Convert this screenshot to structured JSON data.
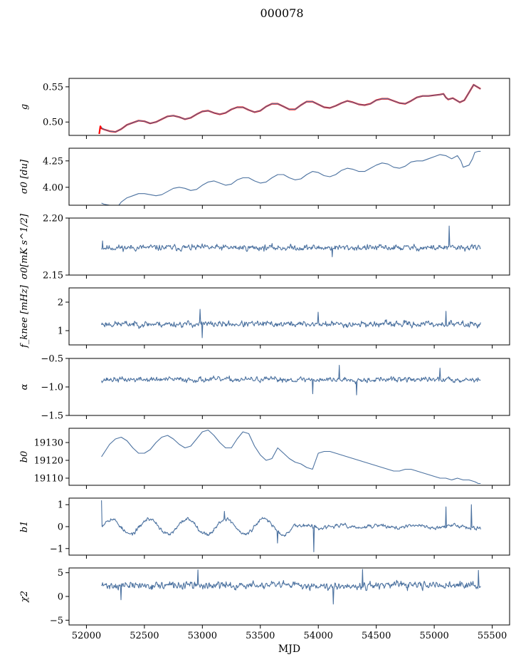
{
  "figure": {
    "title": "000078"
  },
  "chart_data": [
    {
      "type": "line",
      "panel_id": "g",
      "ylabel": "g",
      "xlabel": "",
      "xlim": [
        51850,
        55650
      ],
      "ylim": [
        0.481,
        0.562
      ],
      "yticks": [
        0.5,
        0.55
      ],
      "ytick_labels": [
        "0.50",
        "0.55"
      ],
      "series": [
        {
          "color": "#ff0000",
          "stroke_width": 2.2,
          "x": [
            52110,
            52120,
            52130,
            52160,
            52200,
            52250,
            52300,
            52350,
            52400,
            52450,
            52500,
            52550,
            52600,
            52650,
            52700,
            52750,
            52800,
            52850,
            52900,
            52950,
            53000,
            53050,
            53100,
            53150,
            53200,
            53250,
            53300,
            53350,
            53400,
            53450,
            53500,
            53550,
            53600,
            53650,
            53700,
            53750,
            53800,
            53850,
            53900,
            53950,
            54000,
            54050,
            54100,
            54150,
            54200,
            54250,
            54300,
            54350,
            54400,
            54450,
            54500,
            54550,
            54600,
            54650,
            54700,
            54750,
            54800,
            54850,
            54900,
            54950,
            55000,
            55050,
            55080,
            55100,
            55120,
            55160,
            55200,
            55220,
            55260,
            55300,
            55340,
            55360,
            55380,
            55400
          ],
          "y": [
            0.483,
            0.494,
            0.491,
            0.489,
            0.487,
            0.486,
            0.49,
            0.496,
            0.499,
            0.502,
            0.501,
            0.498,
            0.5,
            0.504,
            0.508,
            0.509,
            0.507,
            0.504,
            0.506,
            0.511,
            0.515,
            0.516,
            0.513,
            0.511,
            0.513,
            0.518,
            0.521,
            0.521,
            0.517,
            0.514,
            0.516,
            0.522,
            0.526,
            0.526,
            0.522,
            0.518,
            0.518,
            0.524,
            0.529,
            0.529,
            0.525,
            0.521,
            0.52,
            0.523,
            0.527,
            0.53,
            0.528,
            0.525,
            0.524,
            0.526,
            0.531,
            0.533,
            0.533,
            0.53,
            0.527,
            0.526,
            0.53,
            0.535,
            0.537,
            0.537,
            0.538,
            0.539,
            0.54,
            0.535,
            0.532,
            0.534,
            0.53,
            0.528,
            0.531,
            0.542,
            0.553,
            0.551,
            0.549,
            0.547
          ]
        },
        {
          "color": "#4c72a0",
          "stroke_width": 1.1,
          "x": [
            52130,
            52160,
            52200,
            52250,
            52300,
            52350,
            52400,
            52450,
            52500,
            52550,
            52600,
            52650,
            52700,
            52750,
            52800,
            52850,
            52900,
            52950,
            53000,
            53050,
            53100,
            53150,
            53200,
            53250,
            53300,
            53350,
            53400,
            53450,
            53500,
            53550,
            53600,
            53650,
            53700,
            53750,
            53800,
            53850,
            53900,
            53950,
            54000,
            54050,
            54100,
            54150,
            54200,
            54250,
            54300,
            54350,
            54400,
            54450,
            54500,
            54550,
            54600,
            54650,
            54700,
            54750,
            54800,
            54850,
            54900,
            54950,
            55000,
            55050,
            55080,
            55100,
            55120,
            55160,
            55200,
            55220,
            55260,
            55300,
            55340,
            55360,
            55380,
            55400
          ],
          "y": [
            0.492,
            0.489,
            0.487,
            0.486,
            0.49,
            0.496,
            0.499,
            0.502,
            0.501,
            0.498,
            0.5,
            0.504,
            0.508,
            0.509,
            0.507,
            0.504,
            0.506,
            0.511,
            0.515,
            0.516,
            0.513,
            0.511,
            0.513,
            0.518,
            0.521,
            0.521,
            0.517,
            0.514,
            0.516,
            0.522,
            0.526,
            0.526,
            0.522,
            0.518,
            0.518,
            0.524,
            0.529,
            0.529,
            0.525,
            0.521,
            0.52,
            0.523,
            0.527,
            0.53,
            0.528,
            0.525,
            0.524,
            0.526,
            0.531,
            0.533,
            0.533,
            0.53,
            0.527,
            0.526,
            0.53,
            0.535,
            0.537,
            0.537,
            0.538,
            0.539,
            0.54,
            0.535,
            0.532,
            0.534,
            0.53,
            0.528,
            0.531,
            0.542,
            0.553,
            0.551,
            0.549,
            0.547
          ]
        }
      ]
    },
    {
      "type": "line",
      "panel_id": "sigma0-du",
      "ylabel": "σ0 [du]",
      "xlabel": "",
      "xlim": [
        51850,
        55650
      ],
      "ylim": [
        3.83,
        4.37
      ],
      "yticks": [
        4.0,
        4.25
      ],
      "ytick_labels": [
        "4.00",
        "4.25"
      ],
      "series": [
        {
          "color": "#4c72a0",
          "stroke_width": 1.1,
          "x": [
            52130,
            52150,
            52200,
            52250,
            52280,
            52300,
            52350,
            52400,
            52450,
            52500,
            52550,
            52600,
            52650,
            52700,
            52750,
            52800,
            52850,
            52900,
            52950,
            53000,
            53050,
            53100,
            53150,
            53200,
            53250,
            53300,
            53350,
            53400,
            53450,
            53500,
            53550,
            53600,
            53650,
            53700,
            53750,
            53800,
            53850,
            53900,
            53950,
            54000,
            54050,
            54100,
            54150,
            54200,
            54250,
            54300,
            54350,
            54400,
            54450,
            54500,
            54550,
            54600,
            54650,
            54700,
            54750,
            54800,
            54850,
            54900,
            54950,
            55000,
            55050,
            55100,
            55150,
            55200,
            55230,
            55250,
            55300,
            55330,
            55350,
            55380,
            55400
          ],
          "y": [
            3.85,
            3.84,
            3.83,
            3.82,
            3.83,
            3.86,
            3.9,
            3.92,
            3.94,
            3.94,
            3.93,
            3.92,
            3.93,
            3.96,
            3.99,
            4.0,
            3.99,
            3.97,
            3.98,
            4.02,
            4.05,
            4.06,
            4.04,
            4.02,
            4.03,
            4.07,
            4.09,
            4.09,
            4.06,
            4.04,
            4.05,
            4.09,
            4.12,
            4.12,
            4.09,
            4.07,
            4.08,
            4.12,
            4.15,
            4.14,
            4.11,
            4.1,
            4.12,
            4.16,
            4.18,
            4.17,
            4.15,
            4.15,
            4.18,
            4.21,
            4.23,
            4.22,
            4.19,
            4.18,
            4.2,
            4.24,
            4.25,
            4.25,
            4.27,
            4.29,
            4.31,
            4.3,
            4.27,
            4.3,
            4.25,
            4.19,
            4.21,
            4.27,
            4.33,
            4.34,
            4.34
          ]
        }
      ]
    },
    {
      "type": "line",
      "panel_id": "sigma0-mk",
      "ylabel": "σ0[mK s^1/2]",
      "xlabel": "",
      "xlim": [
        51850,
        55650
      ],
      "ylim": [
        2.15,
        2.2
      ],
      "yticks": [
        2.15,
        2.2
      ],
      "ytick_labels": [
        "2.15",
        "2.20"
      ],
      "series": [
        {
          "color": "#4c72a0",
          "stroke_width": 1.1,
          "noise": true,
          "mean": 2.174,
          "amp": 0.004,
          "seed": 11,
          "x_start": 52130,
          "x_end": 55400,
          "spikes": [
            [
              55130,
              2.193
            ],
            [
              52140,
              2.18
            ],
            [
              54120,
              2.166
            ]
          ]
        }
      ]
    },
    {
      "type": "line",
      "panel_id": "fknee",
      "ylabel": "f_knee [mHz]",
      "xlabel": "",
      "xlim": [
        51850,
        55650
      ],
      "ylim": [
        0.5,
        2.5
      ],
      "yticks": [
        1,
        2
      ],
      "ytick_labels": [
        "1",
        "2"
      ],
      "series": [
        {
          "color": "#4c72a0",
          "stroke_width": 1.1,
          "noise": true,
          "mean": 1.23,
          "amp": 0.16,
          "seed": 23,
          "x_start": 52130,
          "x_end": 55400,
          "spikes": [
            [
              52980,
              1.75
            ],
            [
              53000,
              0.75
            ],
            [
              54000,
              1.65
            ],
            [
              55100,
              1.68
            ]
          ]
        }
      ]
    },
    {
      "type": "line",
      "panel_id": "alpha",
      "ylabel": "α",
      "xlabel": "",
      "xlim": [
        51850,
        55650
      ],
      "ylim": [
        -1.5,
        -0.5
      ],
      "yticks": [
        -1.5,
        -1.0,
        -0.5
      ],
      "ytick_labels": [
        "−1.5",
        "−1.0",
        "−0.5"
      ],
      "series": [
        {
          "color": "#4c72a0",
          "stroke_width": 1.1,
          "noise": true,
          "mean": -0.87,
          "amp": 0.07,
          "seed": 37,
          "x_start": 52130,
          "x_end": 55400,
          "spikes": [
            [
              54180,
              -0.62
            ],
            [
              54330,
              -1.14
            ],
            [
              53950,
              -1.12
            ],
            [
              55050,
              -0.67
            ]
          ]
        }
      ]
    },
    {
      "type": "line",
      "panel_id": "b0",
      "ylabel": "b0",
      "xlabel": "",
      "xlim": [
        51850,
        55650
      ],
      "ylim": [
        19106,
        19138
      ],
      "yticks": [
        19110,
        19120,
        19130
      ],
      "ytick_labels": [
        "19110",
        "19120",
        "19130"
      ],
      "series": [
        {
          "color": "#4c72a0",
          "stroke_width": 1.1,
          "x": [
            52130,
            52160,
            52200,
            52250,
            52300,
            52350,
            52400,
            52450,
            52500,
            52550,
            52600,
            52650,
            52700,
            52750,
            52800,
            52850,
            52900,
            52950,
            53000,
            53050,
            53100,
            53150,
            53200,
            53250,
            53300,
            53350,
            53400,
            53450,
            53500,
            53550,
            53600,
            53650,
            53700,
            53750,
            53800,
            53850,
            53900,
            53950,
            54000,
            54050,
            54100,
            54150,
            54200,
            54250,
            54300,
            54350,
            54400,
            54450,
            54500,
            54550,
            54600,
            54650,
            54700,
            54750,
            54800,
            54850,
            54900,
            54950,
            55000,
            55050,
            55100,
            55150,
            55200,
            55250,
            55300,
            55350,
            55380,
            55400
          ],
          "y": [
            19122,
            19125,
            19129,
            19132,
            19133,
            19131,
            19127,
            19124,
            19124,
            19126,
            19130,
            19133,
            19134,
            19132,
            19129,
            19127,
            19128,
            19132,
            19136,
            19137,
            19134,
            19130,
            19127,
            19127,
            19132,
            19136,
            19135,
            19128,
            19123,
            19120,
            19121,
            19127,
            19124,
            19121,
            19119,
            19118,
            19116,
            19115,
            19124,
            19125,
            19125,
            19124,
            19123,
            19122,
            19121,
            19120,
            19119,
            19118,
            19117,
            19116,
            19115,
            19114,
            19114,
            19115,
            19115,
            19114,
            19113,
            19112,
            19111,
            19110,
            19110,
            19109,
            19110,
            19109,
            19109,
            19108,
            19107,
            19107
          ]
        }
      ]
    },
    {
      "type": "line",
      "panel_id": "b1",
      "ylabel": "b1",
      "xlabel": "",
      "xlim": [
        51850,
        55650
      ],
      "ylim": [
        -1.3,
        1.3
      ],
      "yticks": [
        -1,
        0,
        1
      ],
      "ytick_labels": [
        "−1",
        "0",
        "1"
      ],
      "series": [
        {
          "color": "#4c72a0",
          "stroke_width": 1.1,
          "noise": true,
          "mean": 0.0,
          "amp": 0.13,
          "seed": 53,
          "x_start": 52130,
          "x_end": 55400,
          "wave": {
            "amp": 0.35,
            "period": 330,
            "fade_at": 53800
          },
          "spikes": [
            [
              52130,
              1.2
            ],
            [
              53960,
              -1.15
            ],
            [
              53650,
              -0.75
            ],
            [
              55320,
              1.0
            ],
            [
              55100,
              0.9
            ],
            [
              53190,
              0.7
            ]
          ]
        }
      ]
    },
    {
      "type": "line",
      "panel_id": "chi2",
      "ylabel": "χ2",
      "xlabel": "MJD",
      "xlim": [
        51850,
        55650
      ],
      "ylim": [
        -6,
        6
      ],
      "yticks": [
        -5,
        0,
        5
      ],
      "ytick_labels": [
        "−5",
        "0",
        "5"
      ],
      "xticks": [
        52000,
        52500,
        53000,
        53500,
        54000,
        54500,
        55000,
        55500
      ],
      "xtick_labels": [
        "52000",
        "52500",
        "53000",
        "53500",
        "54000",
        "54500",
        "55000",
        "55500"
      ],
      "series": [
        {
          "color": "#4c72a0",
          "stroke_width": 1.1,
          "noise": true,
          "mean": 2.3,
          "amp": 1.2,
          "seed": 71,
          "x_start": 52130,
          "x_end": 55400,
          "spikes": [
            [
              54380,
              5.7
            ],
            [
              54130,
              -1.6
            ],
            [
              52960,
              5.6
            ],
            [
              52300,
              -0.7
            ],
            [
              55380,
              5.5
            ]
          ]
        }
      ]
    }
  ]
}
